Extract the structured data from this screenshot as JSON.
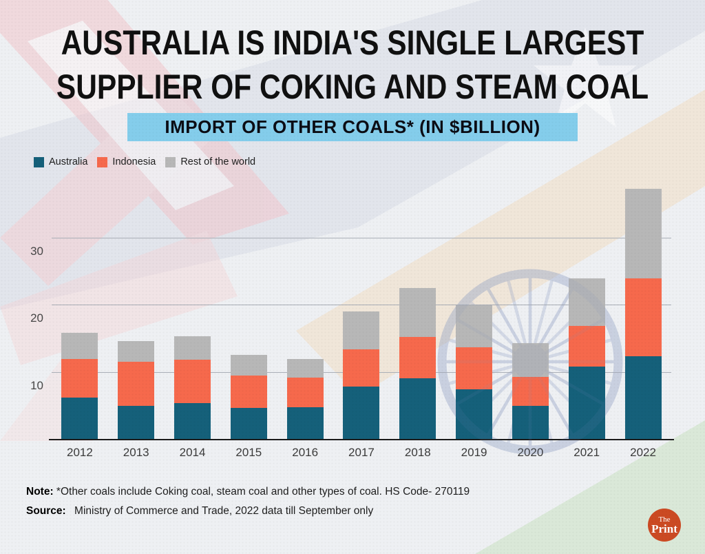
{
  "title": {
    "line1": "AUSTRALIA IS INDIA'S SINGLE LARGEST",
    "line2": "SUPPLIER OF COKING AND STEAM COAL"
  },
  "banner": {
    "text": "IMPORT OF OTHER COALS* (IN $BILLION)",
    "bg_color": "#84cdeb"
  },
  "legend": {
    "items": [
      {
        "label": "Australia",
        "color": "#15607a"
      },
      {
        "label": "Indonesia",
        "color": "#f6694c"
      },
      {
        "label": "Rest of the world",
        "color": "#b7b7b7"
      }
    ]
  },
  "chart_data": {
    "type": "bar",
    "stacked": true,
    "title": "IMPORT OF OTHER COALS* (IN $BILLION)",
    "categories": [
      "2012",
      "2013",
      "2014",
      "2015",
      "2016",
      "2017",
      "2018",
      "2019",
      "2020",
      "2021",
      "2022"
    ],
    "series": [
      {
        "name": "Australia",
        "color": "#15607a",
        "values": [
          6.3,
          5.0,
          5.4,
          4.7,
          4.8,
          7.9,
          9.1,
          7.5,
          5.0,
          10.9,
          12.4
        ]
      },
      {
        "name": "Indonesia",
        "color": "#f6694c",
        "values": [
          5.7,
          6.6,
          6.5,
          4.9,
          4.4,
          5.6,
          6.2,
          6.3,
          4.4,
          6.0,
          11.6
        ]
      },
      {
        "name": "Rest of the world",
        "color": "#b7b7b7",
        "values": [
          3.9,
          3.1,
          3.5,
          3.0,
          2.8,
          5.6,
          7.3,
          6.2,
          5.0,
          7.1,
          13.4
        ]
      }
    ],
    "totals": [
      15.9,
      14.7,
      15.4,
      12.6,
      12.0,
      19.1,
      22.6,
      20.0,
      14.4,
      24.0,
      37.4
    ],
    "xlabel": "",
    "ylabel": "",
    "ylim": [
      0,
      38
    ],
    "yticks": [
      10,
      20,
      30
    ],
    "grid": true,
    "legend_position": "top-left"
  },
  "footnotes": {
    "note_label": "Note:",
    "note_text": "*Other coals include Coking coal, steam coal and other types of coal. HS Code- 270119",
    "source_label": "Source:",
    "source_text": "Ministry of Commerce and Trade, 2022 data till September only"
  },
  "logo": {
    "line1": "The",
    "line2": "Print",
    "bg_color": "#cb4a23"
  }
}
